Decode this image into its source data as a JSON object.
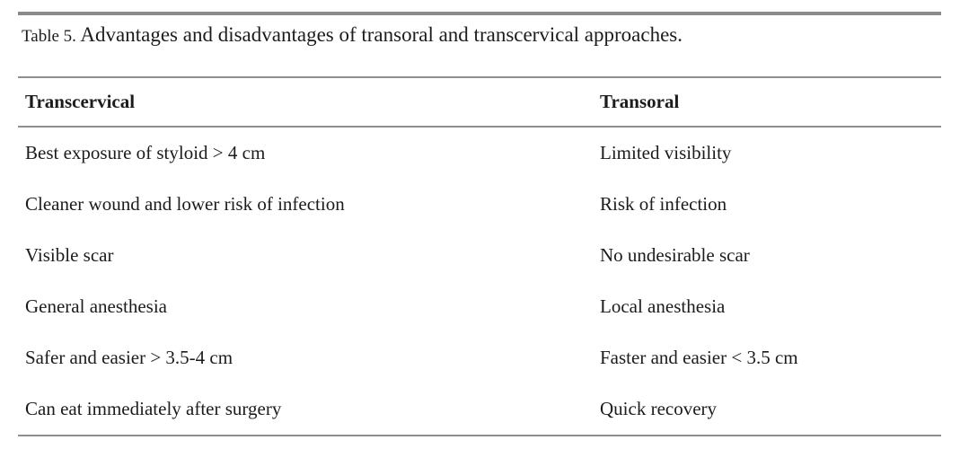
{
  "caption": {
    "label": "Table 5.",
    "text": "Advantages and disadvantages of transoral and transcervical approaches."
  },
  "table": {
    "columns": [
      "Transcervical",
      "Transoral"
    ],
    "rows": [
      {
        "transcervical": "Best exposure of styloid > 4 cm",
        "transoral": "Limited visibility"
      },
      {
        "transcervical": "Cleaner wound and lower risk of infection",
        "transoral": "Risk of infection"
      },
      {
        "transcervical": "Visible scar",
        "transoral": "No undesirable scar"
      },
      {
        "transcervical": "General anesthesia",
        "transoral": "Local anesthesia"
      },
      {
        "transcervical": "Safer and easier > 3.5-4 cm",
        "transoral": "Faster and easier < 3.5 cm"
      },
      {
        "transcervical": "Can eat immediately after surgery",
        "transoral": "Quick recovery"
      }
    ]
  },
  "colors": {
    "text": "#1c1c1c",
    "rule_thick": "#8a8a8a",
    "rule_thin": "#8f8f8f",
    "background": "#ffffff"
  }
}
